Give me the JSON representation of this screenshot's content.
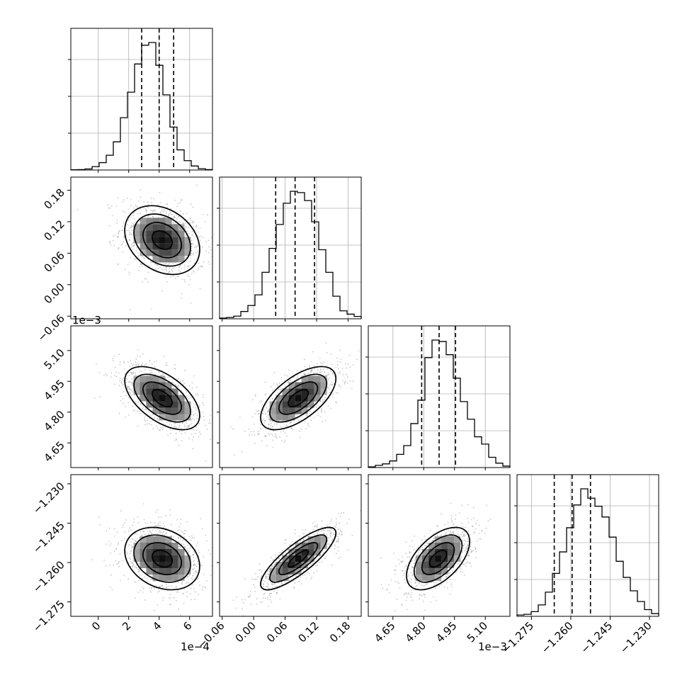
{
  "chart_data": {
    "type": "corner",
    "parameters": [
      {
        "range": [
          -1.8,
          7.5
        ],
        "ticks": [
          0,
          2,
          4,
          6
        ],
        "tick_labels": [
          "0",
          "2",
          "4",
          "6"
        ],
        "offset": "1e−4",
        "quantiles": [
          2.85,
          4.0,
          4.95
        ],
        "hist": [
          0.2,
          0.3,
          0.8,
          2.5,
          5.5,
          11,
          21,
          39,
          58,
          79,
          93,
          95,
          78,
          56,
          32,
          15,
          7,
          3,
          1,
          0.3
        ]
      },
      {
        "range": [
          -0.065,
          0.205
        ],
        "ticks": [
          -0.06,
          0.0,
          0.06,
          0.12,
          0.18
        ],
        "tick_labels": [
          "−0.06",
          "0.00",
          "0.06",
          "0.12",
          "0.18"
        ],
        "offset": "",
        "quantiles": [
          0.042,
          0.079,
          0.116
        ],
        "hist": [
          0.5,
          1,
          2,
          5.5,
          10,
          18,
          35,
          53,
          71,
          87,
          96,
          95,
          89,
          73,
          52,
          35,
          17,
          6,
          3.5,
          1.8
        ]
      },
      {
        "range": [
          4.53,
          5.22
        ],
        "ticks": [
          4.65,
          4.8,
          4.95,
          5.1
        ],
        "tick_labels": [
          "4.65",
          "4.80",
          "4.95",
          "5.10"
        ],
        "offset": "1e−3",
        "quantiles": [
          4.79,
          4.875,
          4.955
        ],
        "hist": [
          0.5,
          1.5,
          2.5,
          4.5,
          9,
          15,
          30,
          46,
          75,
          87,
          86,
          77,
          61,
          45,
          33,
          21,
          16,
          7,
          3,
          1
        ]
      },
      {
        "range": [
          -1.2805,
          -1.2265
        ],
        "ticks": [
          -1.275,
          -1.26,
          -1.245,
          -1.23
        ],
        "tick_labels": [
          "−1.275",
          "−1.260",
          "−1.245",
          "−1.230"
        ],
        "offset": "",
        "quantiles": [
          -1.2663,
          -1.2595,
          -1.2525
        ],
        "hist": [
          1,
          1.5,
          3.5,
          8.5,
          18,
          32,
          48,
          66,
          83,
          95,
          88,
          82,
          74,
          59,
          41,
          29,
          19,
          11,
          5,
          2
        ]
      }
    ],
    "pairs": [
      {
        "row": 1,
        "col": 0,
        "center": [
          4.2,
          0.085
        ],
        "sigma": [
          1.2,
          0.032
        ],
        "rho": -0.28,
        "n_points": 900
      },
      {
        "row": 2,
        "col": 0,
        "center": [
          4.2,
          4.868
        ],
        "sigma": [
          1.2,
          0.075
        ],
        "rho": -0.55,
        "n_points": 900
      },
      {
        "row": 2,
        "col": 1,
        "center": [
          0.085,
          4.868
        ],
        "sigma": [
          0.035,
          0.075
        ],
        "rho": 0.62,
        "n_points": 900
      },
      {
        "row": 3,
        "col": 0,
        "center": [
          4.2,
          -1.2585
        ],
        "sigma": [
          1.2,
          0.0058
        ],
        "rho": -0.25,
        "n_points": 900
      },
      {
        "row": 3,
        "col": 1,
        "center": [
          0.085,
          -1.2585
        ],
        "sigma": [
          0.035,
          0.0058
        ],
        "rho": 0.82,
        "n_points": 900
      },
      {
        "row": 3,
        "col": 2,
        "center": [
          4.87,
          -1.2585
        ],
        "sigma": [
          0.075,
          0.0058
        ],
        "rho": 0.55,
        "n_points": 900
      }
    ]
  }
}
